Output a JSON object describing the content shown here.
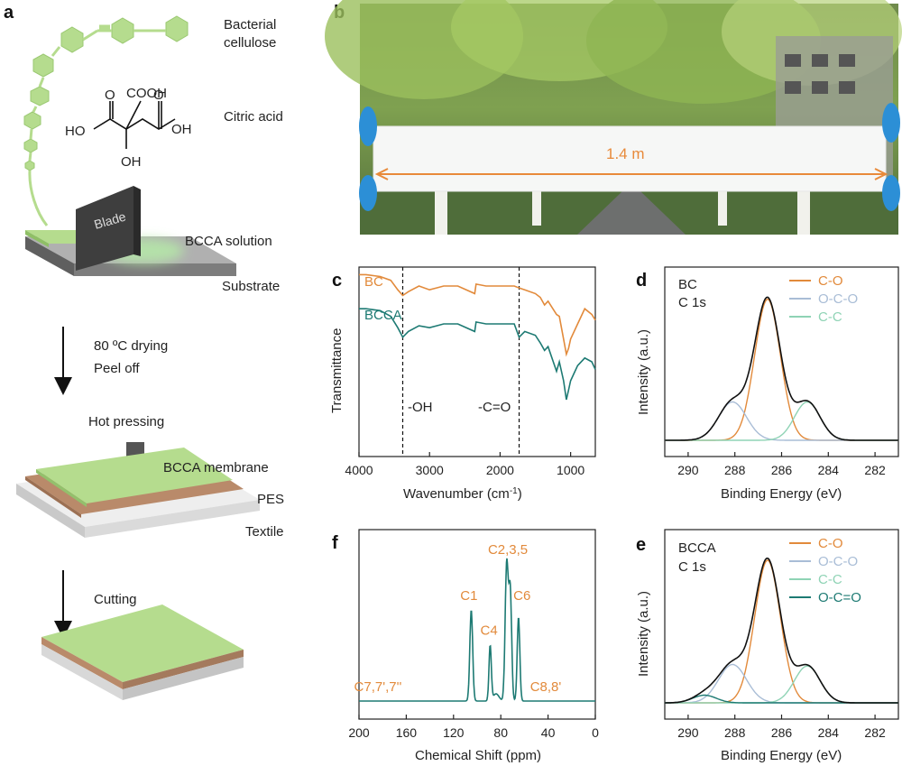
{
  "panel_a": {
    "letter": "a",
    "labels": {
      "bacterial": "Bacterial",
      "cellulose": "cellulose",
      "citric_acid": "Citric acid",
      "cooh": "COOH",
      "ho_left": "HO",
      "oh_right": "OH",
      "oh_bottom": "OH",
      "o_left": "O",
      "o_right": "O",
      "blade": "Blade",
      "bcca_solution": "BCCA solution",
      "substrate": "Substrate",
      "step1_line1": "80 ºC drying",
      "step1_line2": "Peel off",
      "hot_pressing": "Hot pressing",
      "bcca_membrane": "BCCA membrane",
      "pes": "PES",
      "textile": "Textile",
      "cutting": "Cutting"
    },
    "colors": {
      "green": "#b5dc8e",
      "brown": "#b98a6a",
      "gray": "#d9d9d9",
      "blade": "#3e3e3e"
    }
  },
  "panel_b": {
    "letter": "b",
    "dimension_label": "1.4 m",
    "arrow_color": "#e88a3a"
  },
  "chart_data": [
    {
      "panel": "c",
      "type": "line",
      "title": "",
      "xlabel": "Wavenumber (cm",
      "xlabel_sup": "-1",
      "xlabel_end": ")",
      "ylabel": "Transmittance",
      "xlim": [
        4000,
        650
      ],
      "x_ticks": [
        4000,
        3000,
        2000,
        1000
      ],
      "reference_lines": [
        {
          "x": 3380,
          "label": "-OH"
        },
        {
          "x": 1730,
          "label": "-C=O"
        }
      ],
      "series": [
        {
          "name": "BC",
          "color": "#e28a3b",
          "x": [
            4000,
            3900,
            3700,
            3550,
            3450,
            3380,
            3300,
            3150,
            3000,
            2900,
            2800,
            2600,
            2360,
            2340,
            2200,
            2000,
            1800,
            1730,
            1650,
            1500,
            1430,
            1370,
            1320,
            1200,
            1160,
            1100,
            1060,
            1030,
            1000,
            900,
            800,
            700,
            650
          ],
          "y": [
            0.96,
            0.96,
            0.95,
            0.93,
            0.88,
            0.85,
            0.87,
            0.9,
            0.88,
            0.89,
            0.9,
            0.9,
            0.86,
            0.91,
            0.9,
            0.9,
            0.9,
            0.89,
            0.88,
            0.86,
            0.84,
            0.8,
            0.82,
            0.75,
            0.74,
            0.62,
            0.54,
            0.57,
            0.62,
            0.7,
            0.78,
            0.75,
            0.72
          ]
        },
        {
          "name": "BCCA",
          "color": "#1d7a73",
          "x": [
            4000,
            3900,
            3700,
            3550,
            3450,
            3380,
            3300,
            3150,
            3000,
            2900,
            2800,
            2600,
            2360,
            2340,
            2200,
            2000,
            1800,
            1730,
            1650,
            1500,
            1430,
            1370,
            1320,
            1200,
            1160,
            1100,
            1060,
            1030,
            1000,
            900,
            800,
            700,
            650
          ],
          "y": [
            0.78,
            0.78,
            0.77,
            0.74,
            0.68,
            0.63,
            0.66,
            0.69,
            0.68,
            0.69,
            0.7,
            0.7,
            0.66,
            0.71,
            0.7,
            0.7,
            0.7,
            0.63,
            0.66,
            0.64,
            0.6,
            0.56,
            0.58,
            0.45,
            0.5,
            0.4,
            0.3,
            0.35,
            0.4,
            0.48,
            0.52,
            0.5,
            0.46
          ]
        }
      ]
    },
    {
      "panel": "d",
      "type": "line",
      "title": "",
      "annotation": [
        "BC",
        "C 1s"
      ],
      "xlabel": "Binding Energy (eV)",
      "ylabel": "Intensity (a.u.)",
      "xlim": [
        291,
        281
      ],
      "x_ticks": [
        290,
        288,
        286,
        284,
        282
      ],
      "legend": "top-right",
      "envelope_color": "#111111",
      "series": [
        {
          "name": "C-O",
          "color": "#e28a3b",
          "peak": {
            "center": 286.6,
            "height": 0.92,
            "sigma": 0.55
          }
        },
        {
          "name": "O-C-O",
          "color": "#a9bdd6",
          "peak": {
            "center": 288.1,
            "height": 0.25,
            "sigma": 0.6
          }
        },
        {
          "name": "C-C",
          "color": "#8fd3b5",
          "peak": {
            "center": 284.9,
            "height": 0.25,
            "sigma": 0.55
          }
        }
      ]
    },
    {
      "panel": "e",
      "type": "line",
      "title": "",
      "annotation": [
        "BCCA",
        "C 1s"
      ],
      "xlabel": "Binding Energy (eV)",
      "ylabel": "Intensity (a.u.)",
      "xlim": [
        291,
        281
      ],
      "x_ticks": [
        290,
        288,
        286,
        284,
        282
      ],
      "legend": "top-right",
      "envelope_color": "#111111",
      "series": [
        {
          "name": "C-O",
          "color": "#e28a3b",
          "peak": {
            "center": 286.6,
            "height": 0.93,
            "sigma": 0.55
          }
        },
        {
          "name": "O-C-O",
          "color": "#a9bdd6",
          "peak": {
            "center": 288.1,
            "height": 0.25,
            "sigma": 0.6
          }
        },
        {
          "name": "C-C",
          "color": "#8fd3b5",
          "peak": {
            "center": 284.9,
            "height": 0.24,
            "sigma": 0.55
          }
        },
        {
          "name": "O-C=O",
          "color": "#1d7a73",
          "peak": {
            "center": 289.3,
            "height": 0.05,
            "sigma": 0.5
          }
        }
      ]
    },
    {
      "panel": "f",
      "type": "line",
      "title": "",
      "xlabel": "Chemical Shift (ppm)",
      "ylabel": "",
      "xlim": [
        200,
        0
      ],
      "x_ticks": [
        200,
        160,
        120,
        80,
        40,
        0
      ],
      "color": "#1d7a73",
      "peaks": [
        {
          "ppm": 105,
          "height": 0.63,
          "width": 1.2
        },
        {
          "ppm": 89,
          "height": 0.38,
          "width": 1.0
        },
        {
          "ppm": 75,
          "height": 0.95,
          "width": 1.3
        },
        {
          "ppm": 72,
          "height": 0.75,
          "width": 1.2
        },
        {
          "ppm": 65,
          "height": 0.58,
          "width": 1.1
        },
        {
          "ppm": 84,
          "height": 0.05,
          "width": 2.5
        }
      ],
      "peak_labels": [
        {
          "text": "C1",
          "ppm": 107,
          "level": 0.7
        },
        {
          "text": "C4",
          "ppm": 90,
          "level": 0.46
        },
        {
          "text": "C2,3,5",
          "ppm": 74,
          "level": 1.02
        },
        {
          "text": "C6",
          "ppm": 62,
          "level": 0.7
        },
        {
          "text": "C7,7',7''",
          "ppm": 184,
          "level": 0.07
        },
        {
          "text": "C8,8'",
          "ppm": 42,
          "level": 0.07
        }
      ]
    }
  ]
}
